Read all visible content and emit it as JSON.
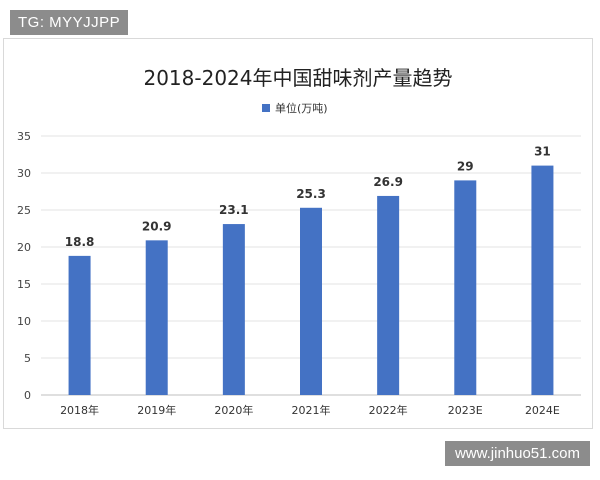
{
  "watermarks": {
    "top_left": "TG: MYYJJPP",
    "bottom_right": "www.jinhuo51.com"
  },
  "chart_data": {
    "type": "bar",
    "title": "2018-2024年中国甜味剂产量趋势",
    "legend": {
      "position": "top-center"
    },
    "categories": [
      "2018年",
      "2019年",
      "2020年",
      "2021年",
      "2022年",
      "2023E",
      "2024E"
    ],
    "series": [
      {
        "name": "单位(万吨)",
        "color": "#4472c4",
        "values": [
          18.8,
          20.9,
          23.1,
          25.3,
          26.9,
          29,
          31
        ],
        "data_labels": [
          "18.8",
          "20.9",
          "23.1",
          "25.3",
          "26.9",
          "29",
          "31"
        ]
      }
    ],
    "ylim": [
      0,
      35
    ],
    "yticks": [
      0,
      5,
      10,
      15,
      20,
      25,
      30,
      35
    ],
    "grid": true
  }
}
